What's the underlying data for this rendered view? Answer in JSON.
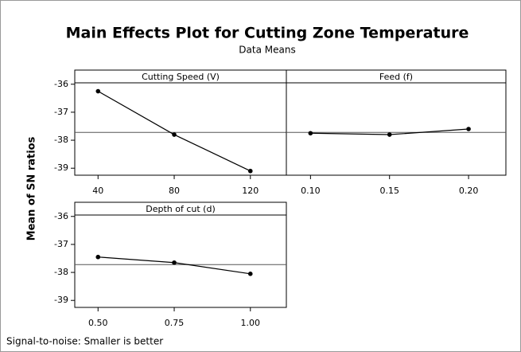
{
  "title": "Main Effects Plot for Cutting Zone Temperature",
  "subtitle": "Data Means",
  "ylabel": "Mean of SN ratios",
  "footnote": "Signal-to-noise: Smaller is better",
  "chart_data": [
    {
      "type": "line",
      "title": "Cutting Speed (V)",
      "categories": [
        "40",
        "80",
        "120"
      ],
      "values": [
        -36.25,
        -37.8,
        -39.1
      ],
      "reference": -37.72,
      "color": "#000000",
      "ylim": [
        -39.25,
        -35.95
      ],
      "yticks": [
        -39,
        -38,
        -37,
        -36
      ]
    },
    {
      "type": "line",
      "title": "Feed (f)",
      "categories": [
        "0.10",
        "0.15",
        "0.20"
      ],
      "values": [
        -37.75,
        -37.8,
        -37.6
      ],
      "reference": -37.72,
      "color": "#000000",
      "ylim": [
        -39.25,
        -35.95
      ]
    },
    {
      "type": "line",
      "title": "Depth of cut (d)",
      "categories": [
        "0.50",
        "0.75",
        "1.00"
      ],
      "values": [
        -37.45,
        -37.65,
        -38.05
      ],
      "reference": -37.72,
      "color": "#000000",
      "ylim": [
        -39.25,
        -35.95
      ],
      "yticks": [
        -39,
        -38,
        -37,
        -36
      ]
    }
  ]
}
